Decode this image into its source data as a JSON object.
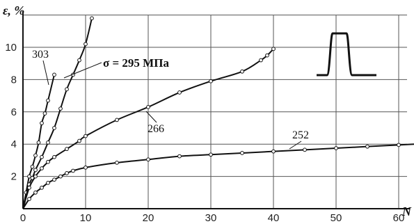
{
  "chart_data": {
    "type": "line",
    "xlabel": "N",
    "ylabel": "ε, %",
    "xlim": [
      0,
      70
    ],
    "ylim": [
      0,
      12
    ],
    "xticks": [
      "0",
      "10",
      "20",
      "30",
      "40",
      "50",
      "60"
    ],
    "yticks": [
      "2",
      "4",
      "6",
      "8",
      "10"
    ],
    "grid": true,
    "annotation": "σ = 295 МПа",
    "inset": "loading-cycle-pulse",
    "series": [
      {
        "name": "303",
        "x": [
          0,
          0.5,
          1,
          1.5,
          2,
          2.5,
          3,
          3.5,
          4,
          5
        ],
        "y": [
          0,
          1.0,
          2.0,
          2.6,
          3.3,
          4.1,
          5.3,
          5.9,
          6.7,
          8.3
        ]
      },
      {
        "name": "295",
        "x": [
          0,
          1,
          1.5,
          2,
          3,
          4,
          5,
          6,
          7,
          8,
          9,
          10,
          11
        ],
        "y": [
          0,
          1.5,
          1.9,
          2.4,
          3.2,
          4.1,
          5.0,
          6.2,
          7.4,
          8.3,
          9.2,
          10.2,
          11.8
        ]
      },
      {
        "name": "266",
        "x": [
          0,
          1,
          2,
          3,
          4,
          5,
          7,
          9,
          10,
          15,
          20,
          25,
          30,
          35,
          38,
          39,
          40
        ],
        "y": [
          0,
          1.3,
          2.0,
          2.5,
          2.9,
          3.2,
          3.7,
          4.2,
          4.5,
          5.5,
          6.3,
          7.2,
          7.9,
          8.5,
          9.2,
          9.5,
          9.9
        ]
      },
      {
        "name": "252",
        "x": [
          0,
          1,
          2,
          3,
          4,
          5,
          6,
          7,
          8,
          10,
          15,
          20,
          25,
          30,
          35,
          40,
          45,
          50,
          55,
          60,
          65
        ],
        "y": [
          0,
          0.6,
          1.0,
          1.3,
          1.6,
          1.8,
          2.0,
          2.2,
          2.35,
          2.55,
          2.85,
          3.05,
          3.25,
          3.35,
          3.45,
          3.55,
          3.65,
          3.75,
          3.85,
          3.95,
          4.05
        ]
      }
    ]
  }
}
